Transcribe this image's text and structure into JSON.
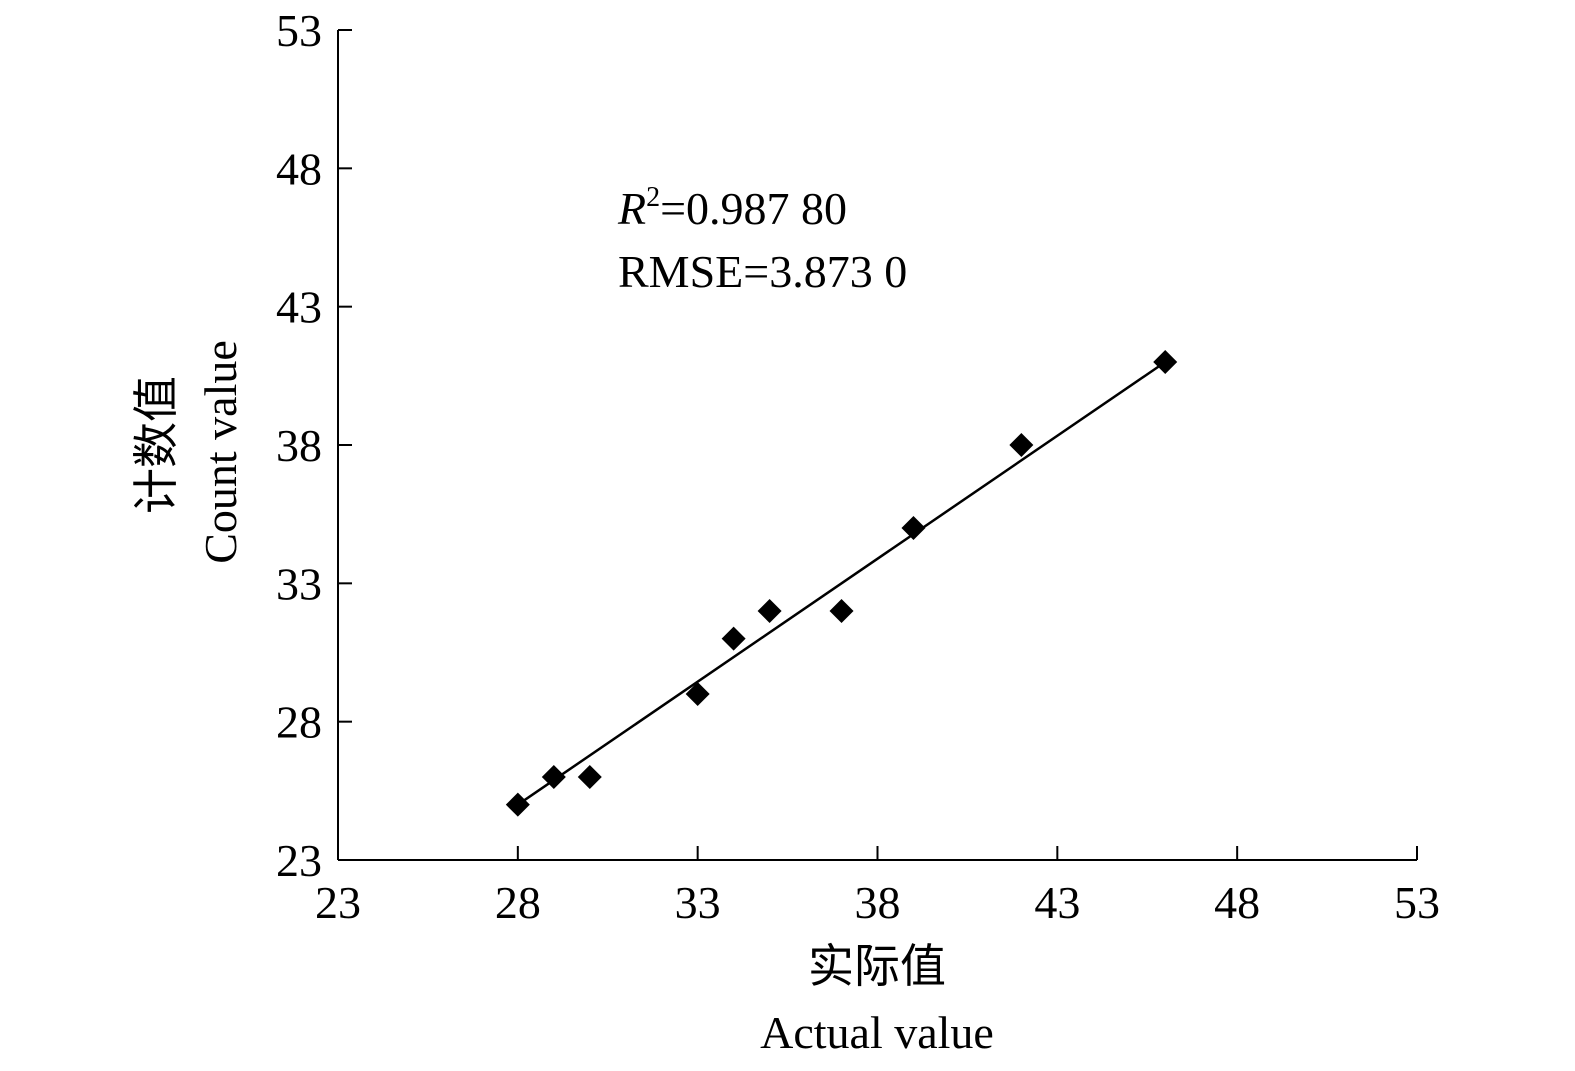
{
  "chart_data": {
    "type": "scatter",
    "title": "",
    "xlabel_cn": "实际值",
    "xlabel_en": "Actual value",
    "ylabel_cn": "计数值",
    "ylabel_en": "Count value",
    "xlim": [
      23,
      53
    ],
    "ylim": [
      23,
      53
    ],
    "xticks": [
      "23",
      "28",
      "33",
      "38",
      "43",
      "48",
      "53"
    ],
    "yticks": [
      "23",
      "28",
      "33",
      "38",
      "43",
      "48",
      "53"
    ],
    "grid": false,
    "points": [
      {
        "x": 28,
        "y": 25
      },
      {
        "x": 29,
        "y": 26
      },
      {
        "x": 30,
        "y": 26
      },
      {
        "x": 33,
        "y": 29
      },
      {
        "x": 34,
        "y": 31
      },
      {
        "x": 35,
        "y": 32
      },
      {
        "x": 37,
        "y": 32
      },
      {
        "x": 39,
        "y": 35
      },
      {
        "x": 42,
        "y": 38
      },
      {
        "x": 46,
        "y": 41
      }
    ],
    "fit_line": {
      "x1": 28,
      "y1": 25,
      "x2": 46,
      "y2": 41
    },
    "annotations": {
      "r2_symbol": "R",
      "r2_superscript": "2",
      "r2_value": "=0.987 80",
      "rmse": "RMSE=3.873 0"
    }
  }
}
